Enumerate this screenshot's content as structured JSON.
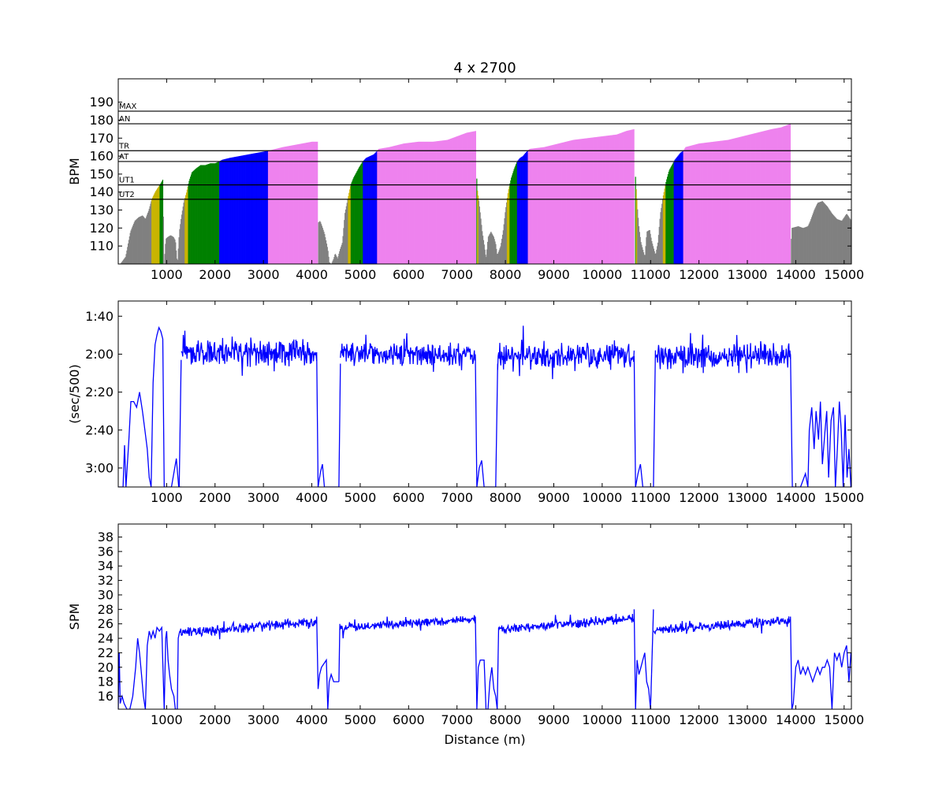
{
  "colors": {
    "hr_zones": {
      "below_ut2": "#808080",
      "ut2": "#c8b400",
      "ut1": "#008000",
      "at": "#0000ff",
      "tr": "#ee82ee",
      "an": "#ee82ee"
    },
    "line": "#0000ff"
  },
  "chart_data": [
    {
      "type": "area",
      "title": "4 x 2700",
      "xlabel": "",
      "ylabel": "BPM",
      "xlim": [
        0,
        15150
      ],
      "ylim": [
        100,
        203
      ],
      "xticks": [
        1000,
        2000,
        3000,
        4000,
        5000,
        6000,
        7000,
        8000,
        9000,
        10000,
        11000,
        12000,
        13000,
        14000,
        15000
      ],
      "yticks": [
        110,
        120,
        130,
        140,
        150,
        160,
        170,
        180,
        190
      ],
      "grid": false,
      "reference_lines": [
        {
          "label": "MAX",
          "value": 185
        },
        {
          "label": "AN",
          "value": 178
        },
        {
          "label": "TR",
          "value": 163
        },
        {
          "label": "AT",
          "value": 157
        },
        {
          "label": "UT1",
          "value": 144
        },
        {
          "label": "UT2",
          "value": 136
        }
      ],
      "segments": [
        {
          "x": [
            0,
            40,
            150,
            250,
            340,
            420,
            500,
            560,
            630,
            690,
            760,
            830,
            880,
            920,
            945,
            980,
            1020,
            1080,
            1140,
            1180,
            1220,
            1260,
            1300,
            1350,
            1410,
            1460,
            1520,
            1600,
            1700,
            1800,
            1900,
            2000,
            2080,
            2150,
            2300,
            2500,
            2700,
            2900,
            3100,
            3250,
            3400,
            3600,
            3800,
            4000,
            4120
          ],
          "y": [
            100,
            100,
            104,
            118,
            124,
            126,
            127,
            125,
            130,
            136,
            140,
            143,
            145,
            147,
            100,
            114,
            115,
            116,
            115,
            113,
            100,
            118,
            126,
            134,
            140,
            146,
            151,
            153,
            155,
            155,
            156,
            156,
            157,
            158,
            159,
            160,
            161,
            162,
            163,
            164,
            165,
            166,
            167,
            168,
            168
          ]
        },
        {
          "x": [
            4130,
            4170,
            4210,
            4260,
            4300,
            4330,
            4360,
            4400,
            4450,
            4480,
            4530,
            4580,
            4630,
            4680,
            4740,
            4800,
            4860,
            4920,
            4980,
            5050,
            5120,
            5200,
            5280,
            5350,
            5380,
            5600,
            5900,
            6200,
            6500,
            6800,
            7000,
            7200,
            7390
          ],
          "y": [
            123,
            124,
            121,
            117,
            112,
            108,
            101,
            100,
            103,
            106,
            103,
            108,
            112,
            128,
            136,
            144,
            148,
            151,
            154,
            157,
            159,
            160,
            161,
            163,
            164,
            165,
            167,
            168,
            168,
            169,
            171,
            173,
            174
          ]
        },
        {
          "x": [
            7400,
            7420,
            7450,
            7480,
            7520,
            7560,
            7600,
            7640,
            7700,
            7760,
            7800,
            7830,
            7860,
            7900,
            7950,
            8000,
            8060,
            8120,
            8180,
            8240,
            8300,
            8360,
            8420,
            8500,
            8800,
            9100,
            9400,
            9700,
            10000,
            10300,
            10500,
            10660
          ],
          "y": [
            151,
            141,
            135,
            128,
            118,
            111,
            103,
            115,
            118,
            115,
            111,
            105,
            107,
            110,
            118,
            130,
            141,
            148,
            153,
            157,
            159,
            160,
            162,
            164,
            165,
            167,
            169,
            170,
            171,
            172,
            174,
            175
          ]
        },
        {
          "x": [
            10680,
            10700,
            10730,
            10760,
            10800,
            10840,
            10880,
            10920,
            10980,
            11020,
            11060,
            11100,
            11150,
            11200,
            11260,
            11320,
            11380,
            11440,
            11500,
            11560,
            11620,
            11680,
            11720,
            12000,
            12300,
            12600,
            12900,
            13200,
            13500,
            13700,
            13890
          ],
          "y": [
            152,
            142,
            130,
            120,
            112,
            108,
            104,
            118,
            119,
            113,
            109,
            105,
            112,
            128,
            138,
            146,
            152,
            155,
            158,
            160,
            162,
            163,
            165,
            167,
            168,
            169,
            171,
            173,
            175,
            176,
            178
          ]
        },
        {
          "x": [
            13900,
            13910,
            14050,
            14150,
            14250,
            14300,
            14380,
            14450,
            14550,
            14650,
            14750,
            14850,
            14950,
            15050,
            15150
          ],
          "y": [
            100,
            120,
            121,
            120,
            121,
            124,
            130,
            134,
            135,
            132,
            128,
            125,
            124,
            128,
            124
          ]
        }
      ]
    },
    {
      "type": "line",
      "xlabel": "",
      "ylabel": "(sec/500)",
      "xlim": [
        0,
        15150
      ],
      "ylim": [
        190,
        92
      ],
      "xticks": [
        1000,
        2000,
        3000,
        4000,
        5000,
        6000,
        7000,
        8000,
        9000,
        10000,
        11000,
        12000,
        13000,
        14000,
        15000
      ],
      "ytick_values": [
        100,
        120,
        140,
        160,
        180
      ],
      "ytick_labels": [
        "1:40",
        "2:00",
        "2:20",
        "2:40",
        "3:00"
      ],
      "grid": false,
      "segments": [
        {
          "x": [
            0,
            100,
            130,
            160,
            220,
            260,
            320,
            380,
            440,
            500,
            550,
            600,
            640,
            680,
            720,
            760,
            800,
            840,
            880,
            920,
            950,
            1000,
            1100,
            1200,
            1250,
            1300
          ],
          "y": [
            190,
            190,
            168,
            190,
            165,
            145,
            145,
            148,
            140,
            150,
            160,
            170,
            185,
            190,
            135,
            115,
            110,
            106,
            108,
            112,
            190,
            190,
            190,
            175,
            190,
            190
          ]
        },
        {
          "x": [
            1260,
            1300
          ],
          "y": [
            190,
            123
          ]
        },
        {
          "base": "trace",
          "x": [
            1300,
            4100
          ],
          "base_y": 119,
          "amp": 11
        },
        {
          "x": [
            4100,
            4130,
            4180,
            4220,
            4260,
            4300,
            4350,
            4560,
            4590
          ],
          "y": [
            119,
            190,
            182,
            178,
            190,
            190,
            190,
            190,
            125
          ]
        },
        {
          "base": "trace",
          "x": [
            4590,
            7380
          ],
          "base_y": 120,
          "amp": 10
        },
        {
          "x": [
            7380,
            7410,
            7460,
            7510,
            7560,
            7800,
            7840
          ],
          "y": [
            121,
            190,
            180,
            176,
            190,
            190,
            125
          ]
        },
        {
          "base": "trace",
          "x": [
            7840,
            10660
          ],
          "base_y": 121,
          "amp": 10
        },
        {
          "x": [
            10660,
            10690,
            10740,
            10790,
            10840,
            11060,
            11100
          ],
          "y": [
            121,
            190,
            183,
            178,
            190,
            190,
            118
          ]
        },
        {
          "base": "trace",
          "x": [
            11100,
            13890
          ],
          "base_y": 121,
          "amp": 10
        },
        {
          "x": [
            13890,
            13930,
            14000,
            14100,
            14200,
            14250,
            14280,
            14330,
            14380,
            14420,
            14470,
            14510,
            14550,
            14600,
            14640,
            14680,
            14730,
            14780,
            14820,
            14860,
            14900,
            14940,
            14980,
            15020,
            15060,
            15100,
            15140
          ],
          "y": [
            120,
            190,
            190,
            190,
            183,
            190,
            160,
            148,
            170,
            150,
            165,
            145,
            178,
            162,
            150,
            185,
            155,
            148,
            190,
            170,
            145,
            160,
            190,
            152,
            185,
            170,
            190
          ]
        }
      ]
    },
    {
      "type": "line",
      "xlabel": "Distance (m)",
      "ylabel": "SPM",
      "xlim": [
        0,
        15150
      ],
      "ylim": [
        14.2,
        39.8
      ],
      "xticks": [
        1000,
        2000,
        3000,
        4000,
        5000,
        6000,
        7000,
        8000,
        9000,
        10000,
        11000,
        12000,
        13000,
        14000,
        15000
      ],
      "yticks": [
        16,
        18,
        20,
        22,
        24,
        26,
        28,
        30,
        32,
        34,
        36,
        38
      ],
      "grid": false,
      "segments": [
        {
          "x": [
            0,
            20,
            40,
            80,
            120,
            180,
            240,
            300,
            360,
            400,
            440,
            480,
            520,
            560,
            600,
            640,
            680,
            720,
            760,
            800,
            850,
            900,
            950,
            980,
            1000,
            1030,
            1060,
            1100,
            1150,
            1180,
            1220,
            1240,
            1270
          ],
          "y": [
            14.2,
            22,
            15,
            16,
            15,
            14.2,
            14.2,
            16,
            20,
            24,
            22,
            19,
            16,
            14.2,
            23,
            25,
            24,
            25,
            24,
            25.5,
            25,
            25.5,
            14.2,
            24,
            25,
            21,
            19,
            17,
            16,
            14.2,
            14.2,
            24,
            25
          ]
        },
        {
          "base": "trace",
          "x": [
            1270,
            4100
          ],
          "base_y": 24.8,
          "amp": 1.1,
          "ramp": 1.5
        },
        {
          "x": [
            4100,
            4130,
            4160,
            4200,
            4250,
            4300,
            4330,
            4360,
            4400,
            4450,
            4500,
            4560
          ],
          "y": [
            27,
            17,
            19,
            20,
            20.5,
            21,
            14.2,
            18,
            19,
            18,
            18,
            18
          ]
        },
        {
          "x": [
            4560,
            4580
          ],
          "y": [
            18,
            26
          ]
        },
        {
          "base": "trace",
          "x": [
            4580,
            7380
          ],
          "base_y": 25.4,
          "amp": 0.9,
          "ramp": 1.3
        },
        {
          "x": [
            7380,
            7410,
            7440,
            7480,
            7560,
            7600,
            7640,
            7680,
            7720,
            7760,
            7800,
            7830
          ],
          "y": [
            27,
            14.2,
            20,
            21,
            21,
            14.2,
            14.2,
            18,
            20,
            17,
            16,
            14.2
          ]
        },
        {
          "x": [
            7830,
            7860
          ],
          "y": [
            14.2,
            25.5
          ]
        },
        {
          "base": "trace",
          "x": [
            7860,
            10660
          ],
          "base_y": 25.2,
          "amp": 1.0,
          "ramp": 1.5
        },
        {
          "x": [
            10660,
            10690,
            10720,
            10760,
            10800,
            10840,
            10880,
            10920,
            10960,
            11000,
            11020
          ],
          "y": [
            28,
            14.2,
            21,
            19,
            20,
            21,
            22,
            18,
            17,
            14.2,
            19
          ]
        },
        {
          "x": [
            11020,
            11060
          ],
          "y": [
            19,
            28
          ]
        },
        {
          "base": "trace",
          "x": [
            11060,
            13890
          ],
          "base_y": 25.2,
          "amp": 1.0,
          "ramp": 1.3
        },
        {
          "x": [
            13890,
            13920,
            13950,
            14000,
            14050,
            14100,
            14150,
            14200,
            14250,
            14300,
            14350,
            14400,
            14450,
            14500,
            14550,
            14600,
            14650,
            14700,
            14750,
            14800,
            14850,
            14900,
            14950,
            15000,
            15050,
            15100,
            15140
          ],
          "y": [
            27,
            14.2,
            15,
            20,
            21,
            19,
            20,
            19,
            20,
            19,
            18,
            19,
            20,
            19,
            20,
            20,
            21,
            20,
            14.2,
            22,
            21,
            22,
            20,
            22,
            23,
            18,
            22
          ]
        }
      ]
    }
  ]
}
